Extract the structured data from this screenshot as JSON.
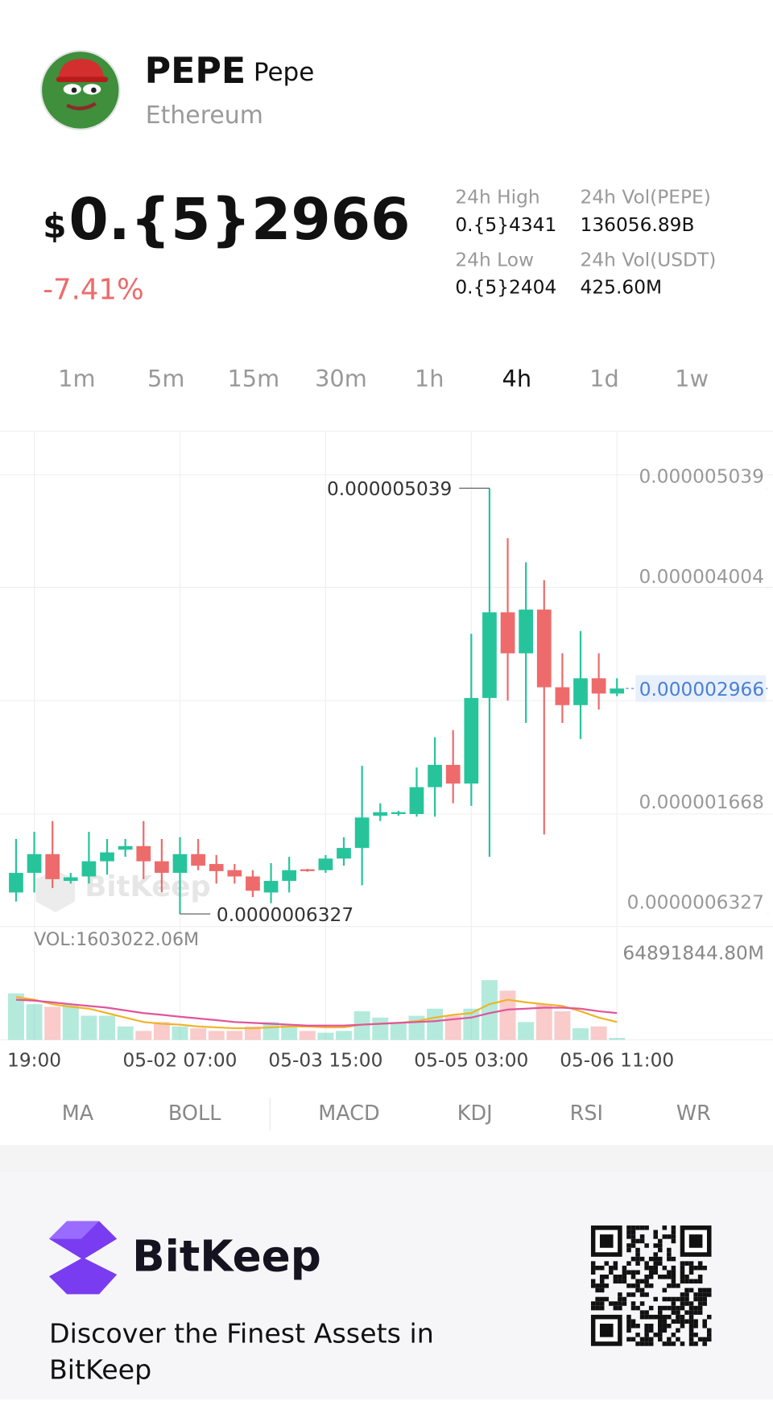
{
  "header": {
    "symbol": "PEPE",
    "name": "Pepe",
    "chain": "Ethereum"
  },
  "price": {
    "currency": "$",
    "value": "0.{5}2966",
    "change": "-7.41%"
  },
  "stats": [
    {
      "label": "24h High",
      "value": "0.{5}4341"
    },
    {
      "label": "24h Vol(PEPE)",
      "value": "136056.89B"
    },
    {
      "label": "24h Low",
      "value": "0.{5}2404"
    },
    {
      "label": "24h Vol(USDT)",
      "value": "425.60M"
    }
  ],
  "timeframes": [
    "1m",
    "5m",
    "15m",
    "30m",
    "1h",
    "4h",
    "1d",
    "1w"
  ],
  "active_timeframe": "4h",
  "chart_data": {
    "type": "candlestick",
    "x": [
      null,
      "19:00",
      null,
      null,
      null,
      null,
      null,
      null,
      null,
      "05-02 07:00",
      null,
      null,
      null,
      null,
      null,
      null,
      null,
      "05-03 15:00",
      null,
      null,
      null,
      null,
      null,
      null,
      null,
      "05-05 03:00",
      null,
      null,
      null,
      null,
      null,
      null,
      null,
      "05-06 11:00"
    ],
    "open": [
      8.55e-07,
      1.058e-06,
      1.252e-06,
      9.75e-07,
      1.021e-06,
      1.178e-06,
      1.298e-06,
      1.335e-06,
      1.178e-06,
      1.058e-06,
      1.252e-06,
      1.15e-06,
      1.086e-06,
      1.021e-06,
      8.55e-07,
      9.75e-07,
      1.095e-06,
      1.086e-06,
      1.206e-06,
      1.316e-06,
      1.649e-06,
      1.667e-06,
      1.667e-06,
      1.945e-06,
      2.176e-06,
      1.982e-06,
      2.868e-06,
      3.755e-06,
      3.33e-06,
      3.783e-06,
      2.979e-06,
      2.794e-06,
      3.072e-06,
      2.914e-06
    ],
    "high": [
      1.409e-06,
      1.483e-06,
      1.594e-06,
      1.058e-06,
      1.483e-06,
      1.409e-06,
      1.409e-06,
      1.594e-06,
      1.409e-06,
      1.427e-06,
      1.409e-06,
      1.243e-06,
      1.15e-06,
      1.086e-06,
      1.159e-06,
      1.224e-06,
      1.1e-06,
      1.243e-06,
      1.427e-06,
      2.166e-06,
      1.778e-06,
      1.7e-06,
      2.148e-06,
      2.462e-06,
      2.536e-06,
      3.533e-06,
      5.039e-06,
      4.522e-06,
      4.272e-06,
      4.088e-06,
      3.33e-06,
      3.561e-06,
      3.33e-06,
      3.072e-06
    ],
    "low": [
      7.62e-07,
      8.55e-07,
      9.01e-07,
      9.47e-07,
      9.47e-07,
      1.039e-06,
      1.224e-06,
      9.93e-07,
      8.55e-07,
      6.327e-07,
      1.086e-06,
      9.47e-07,
      9.47e-07,
      8.08e-07,
      7.44e-07,
      8.55e-07,
      1.07e-06,
      1.058e-06,
      1.132e-06,
      9.29e-07,
      1.594e-06,
      1.65e-06,
      1.64e-06,
      1.64e-06,
      1.778e-06,
      1.751e-06,
      1.224e-06,
      2.841e-06,
      2.61e-06,
      1.455e-06,
      2.61e-06,
      2.443e-06,
      2.748e-06,
      2.887e-06
    ],
    "close": [
      1.058e-06,
      1.252e-06,
      9.93e-07,
      1.012e-06,
      1.178e-06,
      1.27e-06,
      1.335e-06,
      1.178e-06,
      1.058e-06,
      1.252e-06,
      1.132e-06,
      1.076e-06,
      1.021e-06,
      8.73e-07,
      9.75e-07,
      1.086e-06,
      1.076e-06,
      1.206e-06,
      1.316e-06,
      1.631e-06,
      1.686e-06,
      1.686e-06,
      1.945e-06,
      2.176e-06,
      1.982e-06,
      2.868e-06,
      3.755e-06,
      3.33e-06,
      3.783e-06,
      2.979e-06,
      2.794e-06,
      3.072e-06,
      2.914e-06,
      2.966e-06
    ],
    "up_color": "#27c49c",
    "down_color": "#ee6b6b",
    "ylim": [
      5.03e-07,
      5.63e-06
    ],
    "yticks": [
      {
        "value": 5.039e-06,
        "label": "0.000005039"
      },
      {
        "value": 4.004e-06,
        "label": "0.000004004"
      },
      {
        "value": 1.668e-06,
        "label": "0.000001668"
      },
      {
        "value": 6.327e-07,
        "label": "0.0000006327"
      }
    ],
    "high_marker": {
      "value": 5.039e-06,
      "label": "0.000005039"
    },
    "low_marker": {
      "value": 6.327e-07,
      "label": "0.0000006327"
    },
    "current_price": {
      "value": 2.966e-06,
      "label": "0.000002966"
    },
    "watermark": "BitKeep",
    "volume": {
      "label": "VOL:1603022.06M",
      "values": [
        37500000.0,
        28800000.0,
        26700000.0,
        28800000.0,
        19500000.0,
        19500000.0,
        10800000.0,
        7210000.0,
        14400000.0,
        10800000.0,
        9370000.0,
        7210000.0,
        7210000.0,
        10800000.0,
        14400000.0,
        12300000.0,
        7210000.0,
        5770000.0,
        7210000.0,
        23100000.0,
        18000000.0,
        14400000.0,
        19500000.0,
        25200000.0,
        19500000.0,
        25200000.0,
        48300000.0,
        39700000.0,
        14400000.0,
        28800000.0,
        23100000.0,
        9370000.0,
        10800000.0,
        1603022.06
      ],
      "ylim": [
        0,
        64891844.8
      ],
      "yticks": [
        {
          "value": 64891844.8,
          "label": "64891844.80M"
        }
      ],
      "ma": [
        {
          "color": "#f0b429",
          "values": [
            34600000.0,
            32400000.0,
            28800000.0,
            26700000.0,
            25200000.0,
            21600000.0,
            18000000.0,
            14400000.0,
            13000000.0,
            12300000.0,
            10800000.0,
            10100000.0,
            9370000.0,
            9370000.0,
            10100000.0,
            10800000.0,
            10800000.0,
            10100000.0,
            10100000.0,
            12300000.0,
            13000000.0,
            13700000.0,
            15100000.0,
            18000000.0,
            20200000.0,
            21600000.0,
            28800000.0,
            32400000.0,
            30300000.0,
            28800000.0,
            27400000.0,
            23100000.0,
            18000000.0,
            14400000.0
          ]
        },
        {
          "color": "#e0559a",
          "values": [
            32400000.0,
            31700000.0,
            30300000.0,
            28800000.0,
            27400000.0,
            26000000.0,
            23800000.0,
            21600000.0,
            20200000.0,
            18700000.0,
            17300000.0,
            15900000.0,
            14400000.0,
            13700000.0,
            13000000.0,
            12300000.0,
            11500000.0,
            11500000.0,
            11500000.0,
            12300000.0,
            13000000.0,
            13700000.0,
            14400000.0,
            15100000.0,
            16600000.0,
            18000000.0,
            21600000.0,
            24500000.0,
            25200000.0,
            26000000.0,
            26000000.0,
            25200000.0,
            23100000.0,
            21600000.0
          ]
        }
      ]
    }
  },
  "indicators": [
    "MA",
    "BOLL",
    "MACD",
    "KDJ",
    "RSI",
    "WR"
  ],
  "footer": {
    "brand": "BitKeep",
    "tagline": "Discover the Finest Assets in BitKeep"
  }
}
